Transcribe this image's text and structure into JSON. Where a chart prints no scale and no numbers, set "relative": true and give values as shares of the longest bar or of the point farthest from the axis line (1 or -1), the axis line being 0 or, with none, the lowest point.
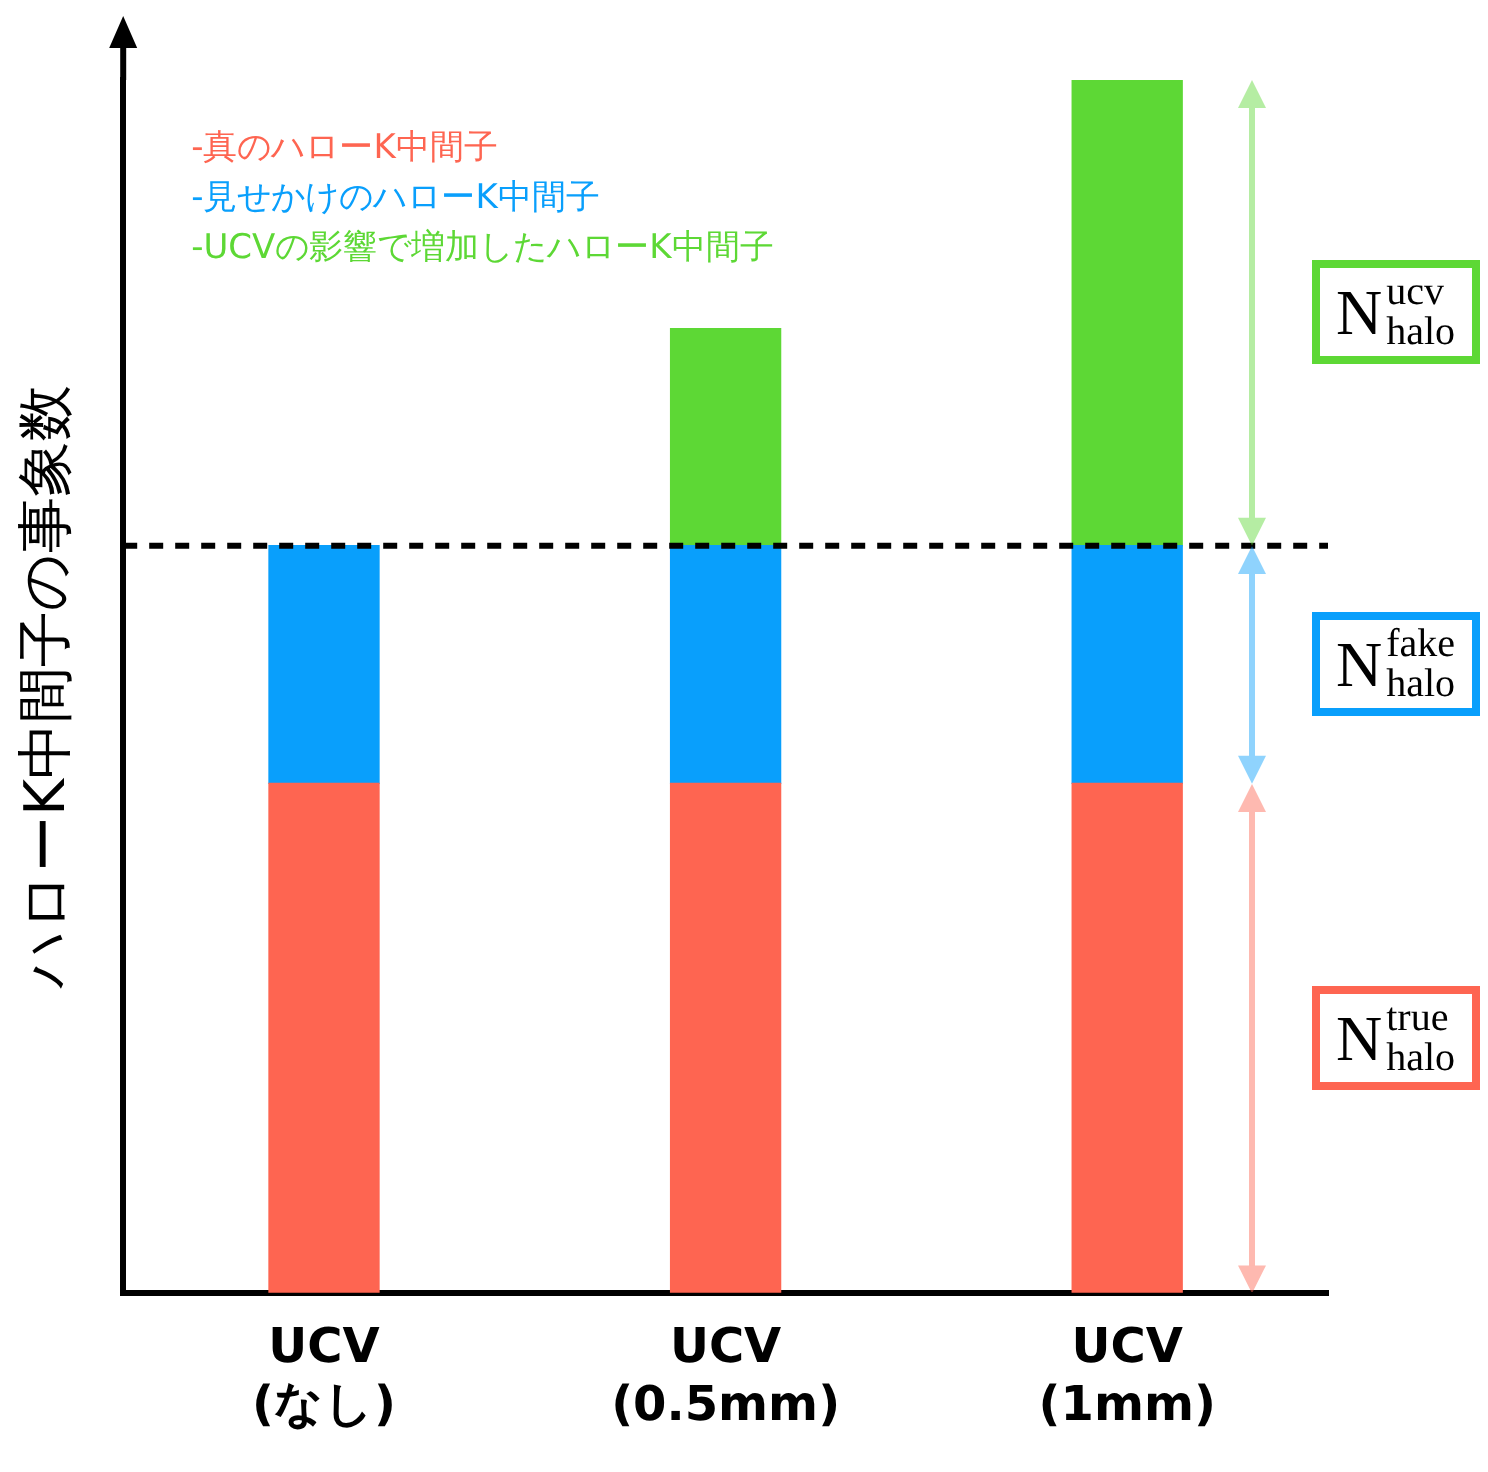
{
  "chart_data": {
    "type": "bar",
    "stacked": true,
    "relative": true,
    "ylabel": "ハローK中間子の事象数",
    "legend": "top left",
    "categories": [
      "UCV\n(なし)",
      "UCV\n(0.5mm)",
      "UCV\n(1mm)"
    ],
    "series": [
      {
        "name": "-真のハローK中間子",
        "color": "#fe6551",
        "values": [
          0.42,
          0.42,
          0.42
        ]
      },
      {
        "name": "-見せかけのハローK中間子",
        "color": "#099ffc",
        "values": [
          0.196,
          0.196,
          0.196
        ]
      },
      {
        "name": "-UCVの影響で増加したハローK中間子",
        "color": "#5dd835",
        "values": [
          null,
          0.179,
          0.384
        ]
      }
    ],
    "ref_lines": [
      {
        "axis": "y",
        "value": 0.616,
        "color": "#000000",
        "line_style": "dashed"
      }
    ],
    "annotations": [
      "N$^{true}$$_{halo}$",
      "N$^{fake}$$_{halo}$",
      "N$^{ucv}$$_{halo}$"
    ]
  }
}
